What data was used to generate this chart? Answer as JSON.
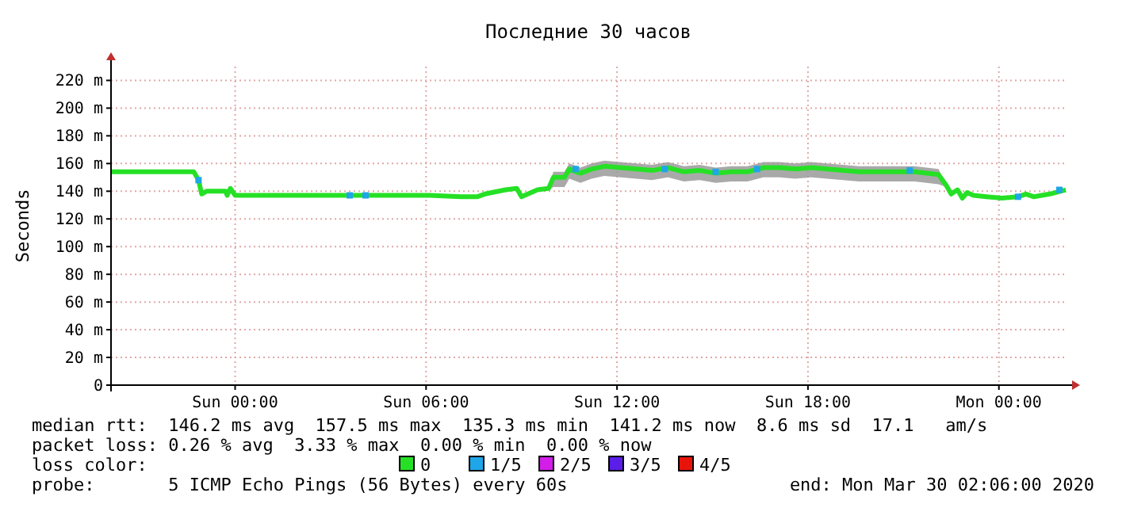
{
  "chart_data": {
    "type": "line",
    "title": "Последние  30 часов",
    "ylabel": "Seconds",
    "xlim": [
      "2020-03-28T20:06",
      "2020-03-30T02:06"
    ],
    "xticks": [
      {
        "value": "2020-03-29T00:00",
        "label": "Sun 00:00"
      },
      {
        "value": "2020-03-29T06:00",
        "label": "Sun 06:00"
      },
      {
        "value": "2020-03-29T12:00",
        "label": "Sun 12:00"
      },
      {
        "value": "2020-03-29T18:00",
        "label": "Sun 18:00"
      },
      {
        "value": "2020-03-30T00:00",
        "label": "Mon 00:00"
      }
    ],
    "ylim": [
      0,
      230
    ],
    "yticks": [
      0,
      {
        "value": 20,
        "label": "20 m"
      },
      {
        "value": 40,
        "label": "40 m"
      },
      {
        "value": 60,
        "label": "60 m"
      },
      {
        "value": 80,
        "label": "80 m"
      },
      {
        "value": 100,
        "label": "100 m"
      },
      {
        "value": 120,
        "label": "120 m"
      },
      {
        "value": 140,
        "label": "140 m"
      },
      {
        "value": 160,
        "label": "160 m"
      },
      {
        "value": 180,
        "label": "180 m"
      },
      {
        "value": 200,
        "label": "200 m"
      },
      {
        "value": 220,
        "label": "220 m"
      }
    ],
    "grid": true,
    "legend": "bottom",
    "legend_title": "loss color:",
    "series": [
      {
        "name": "0",
        "color": "#26e026",
        "x": [
          "2020-03-28T20:06",
          "2020-03-28T21:36",
          "2020-03-28T22:42",
          "2020-03-28T22:51",
          "2020-03-28T22:57",
          "2020-03-28T23:06",
          "2020-03-28T23:42",
          "2020-03-28T23:45",
          "2020-03-28T23:51",
          "2020-03-29T00:00",
          "2020-03-29T02:36",
          "2020-03-29T06:06",
          "2020-03-29T07:06",
          "2020-03-29T07:36",
          "2020-03-29T07:51",
          "2020-03-29T08:30",
          "2020-03-29T08:51",
          "2020-03-29T09:00",
          "2020-03-29T09:12",
          "2020-03-29T09:30",
          "2020-03-29T09:51",
          "2020-03-29T10:00",
          "2020-03-29T10:21",
          "2020-03-29T10:30",
          "2020-03-29T10:51",
          "2020-03-29T11:12",
          "2020-03-29T11:36",
          "2020-03-29T12:06",
          "2020-03-29T12:36",
          "2020-03-29T13:06",
          "2020-03-29T13:36",
          "2020-03-29T14:06",
          "2020-03-29T14:36",
          "2020-03-29T15:06",
          "2020-03-29T15:36",
          "2020-03-29T16:06",
          "2020-03-29T16:36",
          "2020-03-29T17:06",
          "2020-03-29T17:36",
          "2020-03-29T18:06",
          "2020-03-29T18:36",
          "2020-03-29T19:06",
          "2020-03-29T19:36",
          "2020-03-29T20:06",
          "2020-03-29T20:36",
          "2020-03-29T21:21",
          "2020-03-29T22:06",
          "2020-03-29T22:21",
          "2020-03-29T22:30",
          "2020-03-29T22:42",
          "2020-03-29T22:51",
          "2020-03-29T23:00",
          "2020-03-29T23:12",
          "2020-03-29T23:36",
          "2020-03-30T00:06",
          "2020-03-30T00:36",
          "2020-03-30T00:51",
          "2020-03-30T01:06",
          "2020-03-30T01:36",
          "2020-03-30T02:06"
        ],
        "values": [
          154,
          154,
          154,
          148,
          138,
          140,
          140,
          137,
          142,
          137,
          137,
          137,
          136,
          136,
          138,
          141,
          142,
          136,
          138,
          141,
          142,
          150,
          150,
          156,
          153,
          156,
          158,
          157,
          156,
          155,
          157,
          154,
          155,
          153,
          154,
          154,
          157,
          157,
          156,
          157,
          156,
          155,
          154,
          154,
          154,
          154,
          152,
          144,
          138,
          141,
          135,
          139,
          137,
          136,
          135,
          136,
          138,
          136,
          138,
          141
        ],
        "lower": [
          153,
          153,
          153,
          147,
          137,
          139,
          139,
          136,
          141,
          136,
          136,
          136,
          135,
          135,
          137,
          140,
          141,
          135,
          137,
          140,
          141,
          143,
          143,
          149,
          146,
          149,
          151,
          150,
          149,
          148,
          150,
          147,
          148,
          146,
          147,
          147,
          150,
          150,
          149,
          150,
          149,
          148,
          147,
          147,
          147,
          147,
          145,
          143,
          137,
          140,
          134,
          138,
          136,
          135,
          134,
          135,
          137,
          135,
          137,
          140
        ],
        "upper": [
          155,
          155,
          155,
          149,
          139,
          141,
          141,
          138,
          143,
          138,
          138,
          138,
          137,
          137,
          139,
          142,
          143,
          137,
          139,
          142,
          143,
          154,
          154,
          160,
          157,
          160,
          162,
          161,
          160,
          159,
          161,
          158,
          159,
          157,
          158,
          158,
          161,
          161,
          160,
          161,
          160,
          159,
          158,
          158,
          158,
          158,
          156,
          145,
          139,
          142,
          136,
          140,
          138,
          137,
          136,
          137,
          139,
          137,
          139,
          142
        ]
      },
      {
        "name": "1/5",
        "color": "#1ea6e8",
        "type": "scatter",
        "marker": "square",
        "x": [
          "2020-03-28T22:51",
          "2020-03-29T03:36",
          "2020-03-29T04:06",
          "2020-03-29T10:42",
          "2020-03-29T13:30",
          "2020-03-29T15:06",
          "2020-03-29T16:24",
          "2020-03-29T21:12",
          "2020-03-30T00:36",
          "2020-03-30T01:54"
        ],
        "values": [
          148,
          137,
          137,
          156,
          156,
          154,
          156,
          155,
          136,
          141
        ]
      },
      {
        "name": "2/5",
        "color": "#d21ee8",
        "type": "scatter",
        "marker": "square"
      },
      {
        "name": "3/5",
        "color": "#5a1ee8",
        "type": "scatter",
        "marker": "square"
      },
      {
        "name": "4/5",
        "color": "#e8140a",
        "type": "scatter",
        "marker": "square"
      }
    ],
    "annotations": [
      "median rtt:  146.2 ms avg  157.5 ms max  135.3 ms min  141.2 ms now  8.6 ms sd  17.1   am/s",
      "packet loss: 0.26 % avg  3.33 % max  0.00 % min  0.00 % now",
      "probe:       5 ICMP Echo Pings (56 Bytes) every 60s",
      "end: Mon Mar 30 02:06:00 2020"
    ]
  }
}
